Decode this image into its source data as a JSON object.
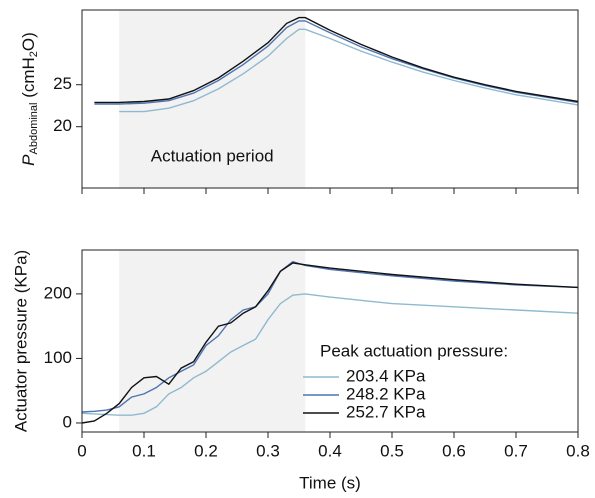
{
  "chart_data": [
    {
      "type": "line",
      "ylabel": [
        "P",
        "Abdominal",
        " (cmH",
        "2",
        "O)"
      ],
      "annotation": "Actuation period",
      "shaded_region": [
        0.06,
        0.36
      ],
      "x": [
        0.02,
        0.06,
        0.1,
        0.14,
        0.18,
        0.22,
        0.26,
        0.3,
        0.33,
        0.35,
        0.36,
        0.4,
        0.45,
        0.5,
        0.55,
        0.6,
        0.65,
        0.7,
        0.75,
        0.8
      ],
      "xlim": [
        0,
        0.8
      ],
      "xticks": [
        0,
        0.1,
        0.2,
        0.3,
        0.4,
        0.5,
        0.6,
        0.7,
        0.8
      ],
      "ylim": [
        12.7,
        33.9
      ],
      "yticks": [
        20,
        25
      ],
      "series": [
        {
          "color": "#8fb9cf",
          "values": [
            null,
            21.8,
            21.8,
            22.2,
            23.1,
            24.5,
            26.3,
            28.4,
            30.5,
            31.6,
            31.6,
            30.5,
            29.0,
            27.7,
            26.5,
            25.5,
            24.6,
            23.8,
            23.2,
            22.6
          ]
        },
        {
          "color": "#4f74b3",
          "values": [
            22.7,
            22.7,
            22.8,
            23.1,
            24.0,
            25.5,
            27.4,
            29.6,
            31.8,
            32.6,
            32.6,
            31.2,
            29.5,
            28.1,
            26.9,
            25.8,
            24.9,
            24.1,
            23.5,
            22.9
          ]
        },
        {
          "color": "#111111",
          "values": [
            22.9,
            22.9,
            23.0,
            23.3,
            24.3,
            25.8,
            27.8,
            30.0,
            32.3,
            33.0,
            33.0,
            31.5,
            29.8,
            28.3,
            27.0,
            25.9,
            25.0,
            24.2,
            23.6,
            23.0
          ]
        }
      ]
    },
    {
      "type": "line",
      "xlabel": "Time (s)",
      "ylabel": "Actuator pressure (KPa)",
      "shaded_region": [
        0.06,
        0.36
      ],
      "x": [
        0,
        0.02,
        0.04,
        0.06,
        0.08,
        0.1,
        0.12,
        0.14,
        0.16,
        0.18,
        0.2,
        0.22,
        0.24,
        0.26,
        0.28,
        0.3,
        0.32,
        0.34,
        0.36,
        0.4,
        0.5,
        0.6,
        0.7,
        0.8
      ],
      "xlim": [
        0,
        0.8
      ],
      "xticks": [
        0,
        0.1,
        0.2,
        0.3,
        0.4,
        0.5,
        0.6,
        0.7,
        0.8
      ],
      "ylim": [
        -14,
        268
      ],
      "yticks": [
        0,
        100,
        200
      ],
      "legend_title": "Peak actuation pressure:",
      "legend": "lower right",
      "series": [
        {
          "name": "203.4 KPa",
          "color": "#8fb9cf",
          "values": [
            15,
            14,
            13,
            12,
            12,
            15,
            25,
            45,
            55,
            70,
            80,
            95,
            110,
            120,
            130,
            160,
            185,
            198,
            200,
            195,
            185,
            180,
            175,
            170
          ]
        },
        {
          "name": "248.2 KPa",
          "color": "#4f74b3",
          "values": [
            17,
            18,
            20,
            25,
            40,
            45,
            55,
            70,
            80,
            90,
            120,
            135,
            160,
            175,
            180,
            200,
            235,
            250,
            244,
            238,
            228,
            220,
            214,
            210
          ]
        },
        {
          "name": "252.7 KPa",
          "color": "#111111",
          "values": [
            0,
            3,
            15,
            30,
            55,
            70,
            72,
            60,
            85,
            95,
            125,
            150,
            155,
            170,
            180,
            205,
            235,
            248,
            245,
            240,
            230,
            222,
            215,
            210
          ]
        }
      ]
    }
  ]
}
